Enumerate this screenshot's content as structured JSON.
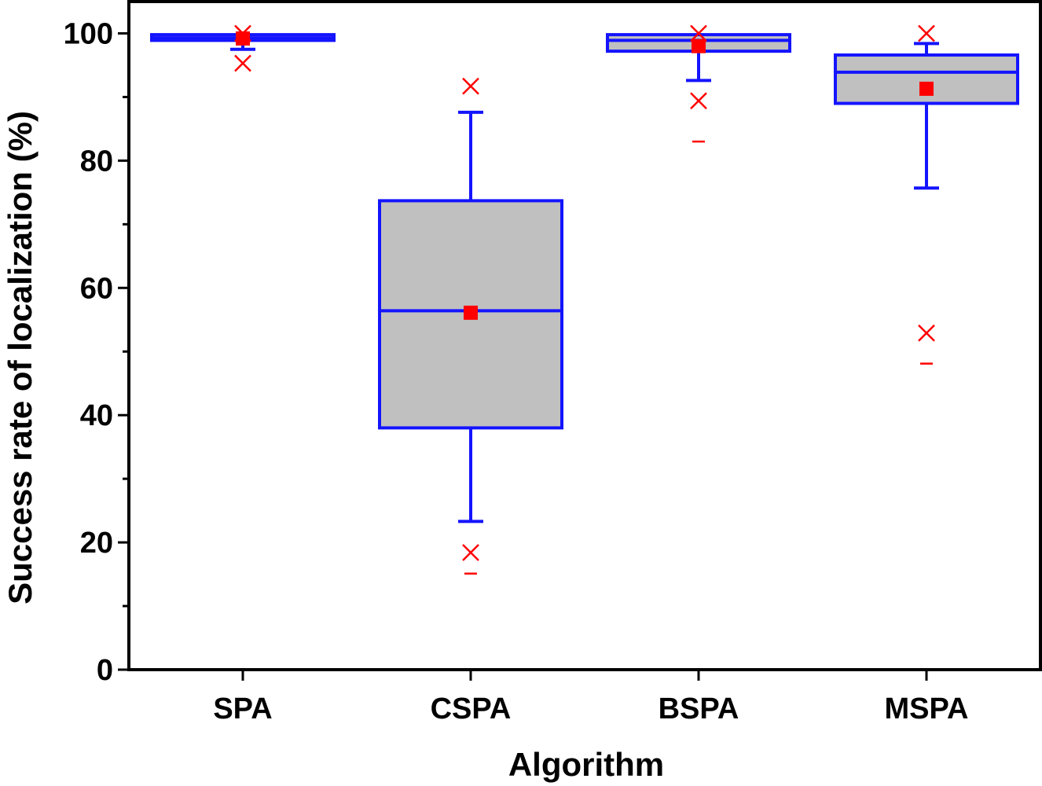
{
  "chart_data": {
    "type": "box",
    "title": "",
    "xlabel": "Algorithm",
    "ylabel": "Success rate of localization (%)",
    "ylim": [
      0,
      105
    ],
    "yticks": [
      0,
      20,
      40,
      60,
      80,
      100
    ],
    "ytick_labels": [
      "0",
      "20",
      "40",
      "60",
      "80",
      "100"
    ],
    "minor_yticks": [
      10,
      30,
      50,
      70,
      90
    ],
    "categories": [
      "SPA",
      "CSPA",
      "BSPA",
      "MSPA"
    ],
    "grid": false,
    "colors": {
      "box_edge": "#1414ff",
      "box_fill": "#c0c0c0",
      "outlier": "#ff0000",
      "mean": "#ff0000"
    },
    "boxes": [
      {
        "name": "SPA",
        "whisker_low": 97.5,
        "q1": 98.9,
        "median": 99.3,
        "q3": 99.8,
        "whisker_high": 99.8,
        "mean": 99.2,
        "outliers": [
          95.3,
          100
        ],
        "extremes": []
      },
      {
        "name": "CSPA",
        "whisker_low": 23.3,
        "q1": 38.0,
        "median": 56.4,
        "q3": 73.7,
        "whisker_high": 87.6,
        "mean": 56.1,
        "outliers": [
          18.4,
          91.7
        ],
        "extremes": [
          15.1
        ]
      },
      {
        "name": "BSPA",
        "whisker_low": 92.6,
        "q1": 97.2,
        "median": 98.9,
        "q3": 99.8,
        "whisker_high": 99.8,
        "mean": 98.0,
        "outliers": [
          89.4,
          100
        ],
        "extremes": [
          83.0
        ]
      },
      {
        "name": "MSPA",
        "whisker_low": 75.7,
        "q1": 89.0,
        "median": 93.9,
        "q3": 96.6,
        "whisker_high": 98.4,
        "mean": 91.3,
        "outliers": [
          52.9,
          100
        ],
        "extremes": [
          48.1
        ]
      }
    ]
  }
}
